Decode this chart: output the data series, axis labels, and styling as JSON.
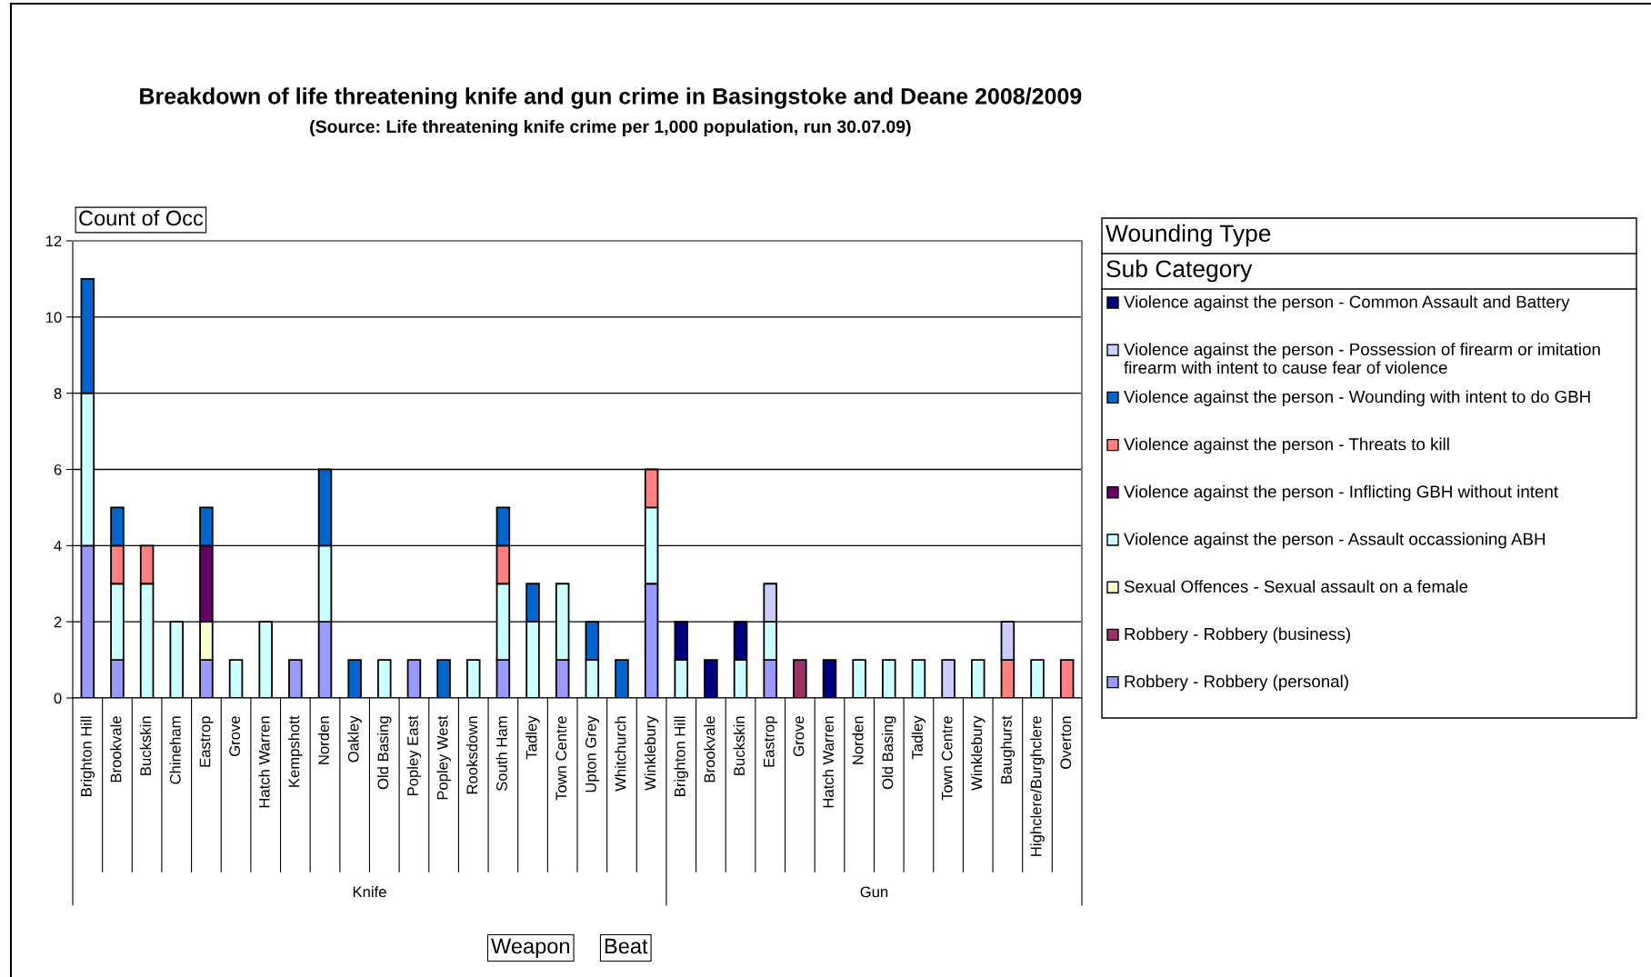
{
  "chart_data": {
    "type": "bar",
    "stacked": true,
    "title": "Breakdown of life threatening knife and gun crime in Basingstoke and Deane 2008/2009",
    "subtitle": "(Source: Life threatening knife crime per 1,000 population, run 30.07.09)",
    "ylabel": "Count of Occ",
    "legend_title": "Wounding Type",
    "legend": "right",
    "grid": "y",
    "ylim": [
      0,
      12
    ],
    "yticks": [
      0,
      2,
      4,
      6,
      8,
      10,
      12
    ],
    "annotations": [
      "Knife",
      "Gun",
      "Sub Category",
      "Weapon",
      "Beat"
    ],
    "categories": [
      "Brighton Hill",
      "Brookvale",
      "Buckskin",
      "Chineham",
      "Eastrop",
      "Grove",
      "Hatch Warren",
      "Kempshott",
      "Norden",
      "Oakley",
      "Old Basing",
      "Popley East",
      "Popley West",
      "Rooksdown",
      "South Ham",
      "Tadley",
      "Town Centre",
      "Upton Grey",
      "Whitchurch",
      "Winklebury",
      "Brighton Hill",
      "Brookvale",
      "Buckskin",
      "Eastrop",
      "Grove",
      "Hatch Warren",
      "Norden",
      "Old Basing",
      "Tadley",
      "Town Centre",
      "Winklebury",
      "Baughurst",
      "Highclere/Burghclere",
      "Overton"
    ],
    "series": [
      {
        "name": "Robbery - Robbery (personal)",
        "color": "#9999ff",
        "values": [
          4,
          1,
          null,
          null,
          1,
          null,
          null,
          1,
          2,
          null,
          null,
          1,
          null,
          null,
          1,
          null,
          1,
          null,
          null,
          3,
          null,
          null,
          null,
          1,
          null,
          null,
          null,
          null,
          null,
          null,
          null,
          null,
          null,
          null
        ]
      },
      {
        "name": "Robbery - Robbery (business)",
        "color": "#993366",
        "values": [
          null,
          null,
          null,
          null,
          null,
          null,
          null,
          null,
          null,
          null,
          null,
          null,
          null,
          null,
          null,
          null,
          null,
          null,
          null,
          null,
          null,
          null,
          null,
          null,
          1,
          null,
          null,
          null,
          null,
          null,
          null,
          null,
          null,
          null
        ]
      },
      {
        "name": "Sexual Offences - Sexual assault on a female",
        "color": "#ffffcc",
        "values": [
          null,
          null,
          null,
          null,
          1,
          null,
          null,
          null,
          null,
          null,
          null,
          null,
          null,
          null,
          null,
          null,
          null,
          null,
          null,
          null,
          null,
          null,
          null,
          null,
          null,
          null,
          null,
          null,
          null,
          null,
          null,
          null,
          null,
          null
        ]
      },
      {
        "name": "Violence against the person - Assault occassioning ABH",
        "color": "#ccffff",
        "values": [
          4,
          2,
          3,
          2,
          null,
          1,
          2,
          null,
          2,
          null,
          1,
          null,
          null,
          1,
          2,
          2,
          2,
          1,
          null,
          2,
          1,
          null,
          1,
          1,
          null,
          null,
          1,
          1,
          1,
          null,
          1,
          null,
          1,
          null
        ]
      },
      {
        "name": "Violence against the person - Inflicting GBH without intent",
        "color": "#660066",
        "values": [
          null,
          null,
          null,
          null,
          2,
          null,
          null,
          null,
          null,
          null,
          null,
          null,
          null,
          null,
          null,
          null,
          null,
          null,
          null,
          null,
          null,
          null,
          null,
          null,
          null,
          null,
          null,
          null,
          null,
          null,
          null,
          null,
          null,
          null
        ]
      },
      {
        "name": "Violence against the person - Threats to kill",
        "color": "#ff8080",
        "values": [
          null,
          1,
          1,
          null,
          null,
          null,
          null,
          null,
          null,
          null,
          null,
          null,
          null,
          null,
          1,
          null,
          null,
          null,
          null,
          1,
          null,
          null,
          null,
          null,
          null,
          null,
          null,
          null,
          null,
          null,
          null,
          1,
          null,
          1
        ]
      },
      {
        "name": "Violence against the person - Wounding with intent to do GBH",
        "color": "#0066cc",
        "values": [
          3,
          1,
          null,
          null,
          1,
          null,
          null,
          null,
          2,
          1,
          null,
          null,
          1,
          null,
          1,
          1,
          null,
          1,
          1,
          null,
          null,
          null,
          null,
          null,
          null,
          null,
          null,
          null,
          null,
          null,
          null,
          null,
          null,
          null
        ]
      },
      {
        "name": "Violence against the person - Possession of firearm or imitation firearm with intent to cause fear of violence",
        "color": "#ccccff",
        "values": [
          null,
          null,
          null,
          null,
          null,
          null,
          null,
          null,
          null,
          null,
          null,
          null,
          null,
          null,
          null,
          null,
          null,
          null,
          null,
          null,
          null,
          null,
          null,
          1,
          null,
          null,
          null,
          null,
          null,
          1,
          null,
          1,
          null,
          null
        ]
      },
      {
        "name": "Violence against the person - Common Assault and Battery",
        "color": "#000080",
        "values": [
          null,
          null,
          null,
          null,
          null,
          null,
          null,
          null,
          null,
          null,
          null,
          null,
          null,
          null,
          null,
          null,
          null,
          null,
          null,
          null,
          1,
          1,
          1,
          null,
          null,
          1,
          null,
          null,
          null,
          null,
          null,
          null,
          null,
          null
        ]
      }
    ]
  }
}
